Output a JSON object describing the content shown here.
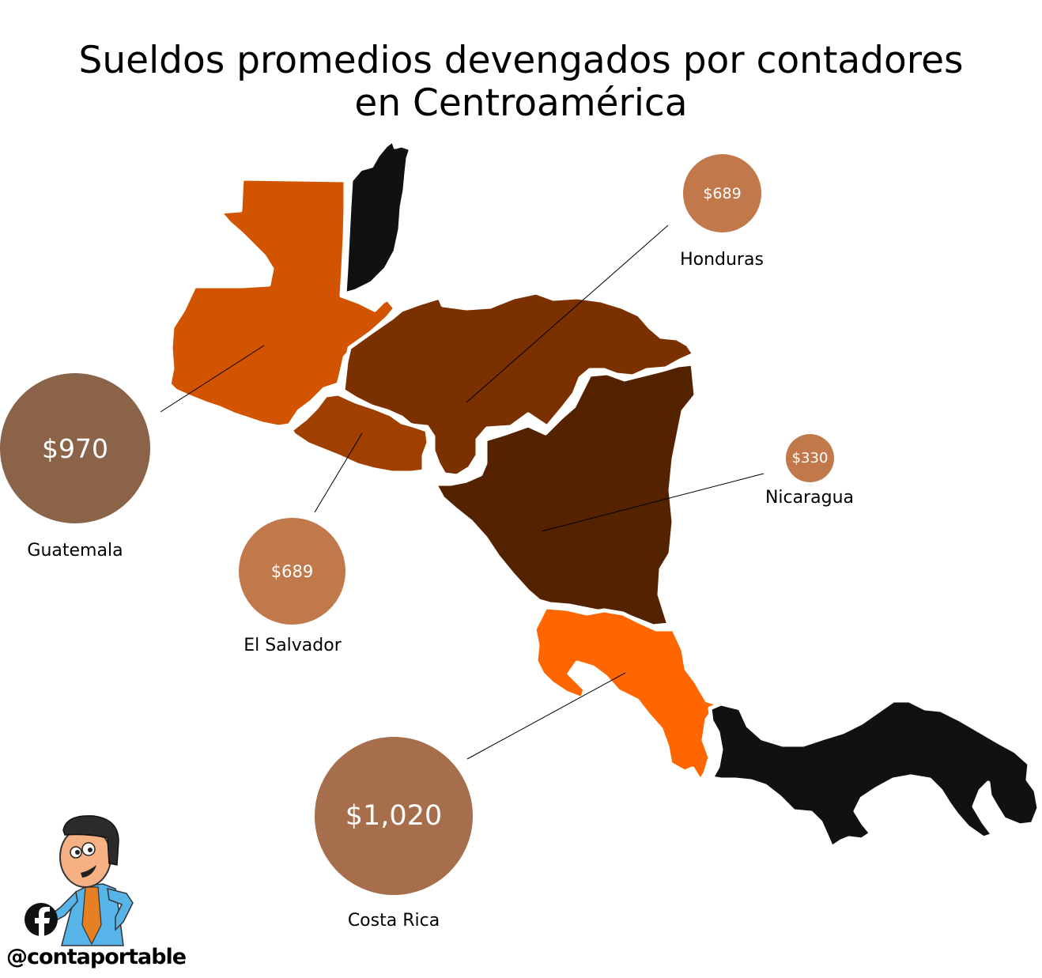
{
  "title": {
    "line1": "Sueldos promedios devengados por contadores",
    "line2": "en Centroamérica"
  },
  "colors": {
    "guatemala": "#d35400",
    "belize": "#111111",
    "honduras": "#7b3000",
    "el_salvador": "#a04000",
    "nicaragua": "#552200",
    "costa_rica": "#ff6600",
    "panama": "#111111",
    "bubble_large": "#8b6349",
    "bubble_medium": "#c1784b",
    "bubble_costa_rica": "#a66e4b"
  },
  "countries": {
    "guatemala": {
      "name": "Guatemala",
      "salary": "$970"
    },
    "el_salvador": {
      "name": "El Salvador",
      "salary": "$689"
    },
    "honduras": {
      "name": "Honduras",
      "salary": "$689"
    },
    "nicaragua": {
      "name": "Nicaragua",
      "salary": "$330"
    },
    "costa_rica": {
      "name": "Costa Rica",
      "salary": "$1,020"
    }
  },
  "branding": {
    "handle": "@contaportable",
    "social_icon": "facebook-icon",
    "mascot": "accountant-mascot"
  }
}
